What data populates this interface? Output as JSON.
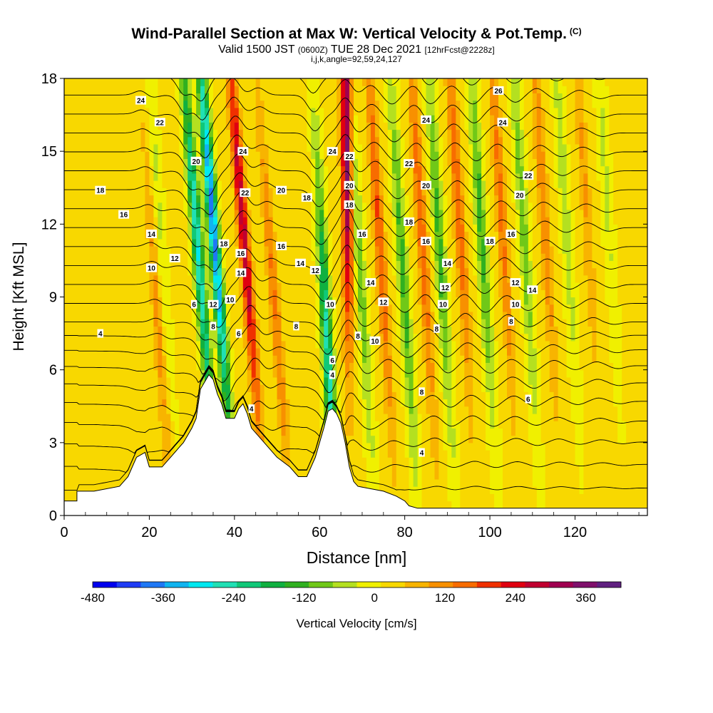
{
  "header": {
    "title": "Wind-Parallel Section at Max W: Vertical Velocity & Pot.Temp.",
    "copyright": "(C)",
    "valid_prefix": "Valid 1500 JST",
    "valid_utc": "(0600Z)",
    "valid_date": "TUE 28 Dec 2021",
    "forecast": "[12hrFcst@2228z]",
    "indices": "i,j,k,angle=92,59,24,127"
  },
  "chart_data": {
    "type": "heatmap",
    "xlabel": "Distance [nm]",
    "ylabel": "Height [Kft MSL]",
    "xlim": [
      0,
      137
    ],
    "ylim": [
      0,
      18
    ],
    "xticks": [
      0,
      20,
      40,
      60,
      80,
      100,
      120
    ],
    "yticks": [
      0,
      3,
      6,
      9,
      12,
      15,
      18
    ],
    "colorbar": {
      "label": "Vertical Velocity [cm/s]",
      "tick_values": [
        -480,
        -360,
        -240,
        -120,
        0,
        120,
        240,
        360
      ],
      "range": [
        -480,
        420
      ],
      "colors": [
        "#0000ee",
        "#1f3cf5",
        "#1f78f5",
        "#10b4f0",
        "#00e8f0",
        "#20e0b4",
        "#10c878",
        "#10b040",
        "#30b020",
        "#70c818",
        "#b4e020",
        "#f0f000",
        "#f8d800",
        "#f8b400",
        "#f89000",
        "#f86c00",
        "#f03000",
        "#e00010",
        "#c00030",
        "#a00050",
        "#80106c",
        "#602080"
      ]
    },
    "terrain_profile": {
      "x": [
        0,
        3,
        3,
        7,
        13,
        15,
        16,
        17,
        19,
        20,
        23,
        24,
        25,
        26,
        27,
        28,
        29,
        30,
        31,
        32,
        34,
        35,
        36,
        37,
        38,
        40,
        41,
        42,
        43,
        44,
        47,
        50,
        53,
        55,
        57,
        58,
        59,
        60,
        61,
        62,
        63,
        64,
        65,
        66,
        67,
        68,
        69,
        72,
        75,
        78,
        80,
        81,
        83,
        85,
        137
      ],
      "height_kft": [
        0.6,
        0.6,
        1.0,
        1.0,
        1.2,
        1.6,
        2.0,
        2.4,
        2.6,
        2.0,
        2.0,
        2.2,
        2.4,
        2.6,
        2.8,
        3.0,
        3.3,
        3.6,
        4.0,
        5.2,
        5.8,
        5.6,
        5.0,
        4.6,
        4.0,
        4.0,
        4.4,
        4.6,
        4.2,
        3.6,
        3.0,
        2.4,
        2.0,
        1.6,
        1.6,
        2.0,
        2.4,
        3.0,
        3.6,
        4.3,
        4.4,
        4.2,
        3.8,
        3.0,
        2.0,
        1.4,
        1.2,
        1.1,
        1.0,
        0.8,
        0.6,
        0.4,
        0.3,
        0.3,
        0.3
      ]
    },
    "vertical_velocity_bands": [
      {
        "x_base": 35,
        "amp_cm_s": -300,
        "peak_kft": 11,
        "slope": -0.45
      },
      {
        "x_base": 39,
        "amp_cm_s": -400,
        "peak_kft": 12,
        "slope": -0.45
      },
      {
        "x_base": 46,
        "amp_cm_s": 280,
        "peak_kft": 12,
        "slope": -0.45
      },
      {
        "x_base": 52,
        "amp_cm_s": 120,
        "peak_kft": 9,
        "slope": -0.45
      },
      {
        "x_base": 63,
        "amp_cm_s": -280,
        "peak_kft": 6,
        "slope": -0.3
      },
      {
        "x_base": 67,
        "amp_cm_s": 360,
        "peak_kft": 16,
        "slope": -0.05
      },
      {
        "x_base": 72,
        "amp_cm_s": -120,
        "peak_kft": 10,
        "slope": -0.35
      },
      {
        "x_base": 77,
        "amp_cm_s": 160,
        "peak_kft": 12,
        "slope": -0.35
      },
      {
        "x_base": 82,
        "amp_cm_s": -150,
        "peak_kft": 10,
        "slope": -0.35
      },
      {
        "x_base": 87,
        "amp_cm_s": 150,
        "peak_kft": 12,
        "slope": -0.35
      },
      {
        "x_base": 91,
        "amp_cm_s": -150,
        "peak_kft": 11,
        "slope": -0.35
      },
      {
        "x_base": 96,
        "amp_cm_s": 150,
        "peak_kft": 13,
        "slope": -0.35
      },
      {
        "x_base": 101,
        "amp_cm_s": -150,
        "peak_kft": 12,
        "slope": -0.35
      },
      {
        "x_base": 106,
        "amp_cm_s": 130,
        "peak_kft": 13,
        "slope": -0.35
      },
      {
        "x_base": 111,
        "amp_cm_s": -120,
        "peak_kft": 12,
        "slope": -0.35
      },
      {
        "x_base": 116,
        "amp_cm_s": 110,
        "peak_kft": 13,
        "slope": -0.35
      },
      {
        "x_base": 121,
        "amp_cm_s": -80,
        "peak_kft": 13,
        "slope": -0.35
      },
      {
        "x_base": 126,
        "amp_cm_s": 80,
        "peak_kft": 14,
        "slope": -0.35
      },
      {
        "x_base": 131,
        "amp_cm_s": -60,
        "peak_kft": 14,
        "slope": -0.35
      },
      {
        "x_base": 24,
        "amp_cm_s": 90,
        "peak_kft": 8,
        "slope": -0.4
      },
      {
        "x_base": 26,
        "amp_cm_s": -60,
        "peak_kft": 13,
        "slope": -0.4
      }
    ],
    "theta_contours": {
      "levels": [
        4,
        5,
        6,
        7,
        8,
        9,
        10,
        11,
        12,
        13,
        14,
        15,
        16,
        17,
        18,
        19,
        20,
        21,
        22,
        23,
        24,
        25,
        26
      ],
      "labels": [
        {
          "text": "24",
          "x": 18,
          "y": 17.1
        },
        {
          "text": "22",
          "x": 22.5,
          "y": 16.2
        },
        {
          "text": "20",
          "x": 31,
          "y": 14.6
        },
        {
          "text": "18",
          "x": 8.5,
          "y": 13.4
        },
        {
          "text": "16",
          "x": 14,
          "y": 12.4
        },
        {
          "text": "14",
          "x": 20.5,
          "y": 11.6
        },
        {
          "text": "12",
          "x": 26,
          "y": 10.6
        },
        {
          "text": "10",
          "x": 20.5,
          "y": 10.2
        },
        {
          "text": "6",
          "x": 30.5,
          "y": 8.7
        },
        {
          "text": "4",
          "x": 8.5,
          "y": 7.5
        },
        {
          "text": "24",
          "x": 42,
          "y": 15.0
        },
        {
          "text": "22",
          "x": 42.5,
          "y": 13.3
        },
        {
          "text": "18",
          "x": 37.5,
          "y": 11.2
        },
        {
          "text": "16",
          "x": 41.5,
          "y": 10.8
        },
        {
          "text": "14",
          "x": 41.5,
          "y": 10.0
        },
        {
          "text": "12",
          "x": 35,
          "y": 8.7
        },
        {
          "text": "10",
          "x": 39,
          "y": 8.9
        },
        {
          "text": "8",
          "x": 35,
          "y": 7.8
        },
        {
          "text": "6",
          "x": 41,
          "y": 7.5
        },
        {
          "text": "4",
          "x": 44,
          "y": 4.4
        },
        {
          "text": "20",
          "x": 51,
          "y": 13.4
        },
        {
          "text": "18",
          "x": 57,
          "y": 13.1
        },
        {
          "text": "16",
          "x": 51,
          "y": 11.1
        },
        {
          "text": "14",
          "x": 55.5,
          "y": 10.4
        },
        {
          "text": "12",
          "x": 59,
          "y": 10.1
        },
        {
          "text": "10",
          "x": 62.5,
          "y": 8.7
        },
        {
          "text": "8",
          "x": 54.5,
          "y": 7.8
        },
        {
          "text": "6",
          "x": 63,
          "y": 6.4
        },
        {
          "text": "4",
          "x": 63,
          "y": 5.8
        },
        {
          "text": "24",
          "x": 63,
          "y": 15.0
        },
        {
          "text": "22",
          "x": 67,
          "y": 14.8
        },
        {
          "text": "20",
          "x": 67,
          "y": 13.6
        },
        {
          "text": "18",
          "x": 67,
          "y": 12.8
        },
        {
          "text": "16",
          "x": 70,
          "y": 11.6
        },
        {
          "text": "14",
          "x": 72,
          "y": 9.6
        },
        {
          "text": "12",
          "x": 75,
          "y": 8.8
        },
        {
          "text": "10",
          "x": 73,
          "y": 7.2
        },
        {
          "text": "8",
          "x": 69,
          "y": 7.4
        },
        {
          "text": "24",
          "x": 85,
          "y": 16.3
        },
        {
          "text": "22",
          "x": 81,
          "y": 14.5
        },
        {
          "text": "20",
          "x": 85,
          "y": 13.6
        },
        {
          "text": "18",
          "x": 81,
          "y": 12.1
        },
        {
          "text": "16",
          "x": 85,
          "y": 11.3
        },
        {
          "text": "14",
          "x": 90,
          "y": 10.4
        },
        {
          "text": "12",
          "x": 89.5,
          "y": 9.4
        },
        {
          "text": "10",
          "x": 89,
          "y": 8.7
        },
        {
          "text": "8",
          "x": 87.5,
          "y": 7.7
        },
        {
          "text": "8",
          "x": 84,
          "y": 5.1
        },
        {
          "text": "4",
          "x": 84,
          "y": 2.6
        },
        {
          "text": "26",
          "x": 102,
          "y": 17.5
        },
        {
          "text": "24",
          "x": 103,
          "y": 16.2
        },
        {
          "text": "22",
          "x": 109,
          "y": 14.0
        },
        {
          "text": "20",
          "x": 107,
          "y": 13.2
        },
        {
          "text": "18",
          "x": 100,
          "y": 11.3
        },
        {
          "text": "16",
          "x": 105,
          "y": 11.6
        },
        {
          "text": "12",
          "x": 106,
          "y": 9.6
        },
        {
          "text": "10",
          "x": 106,
          "y": 8.7
        },
        {
          "text": "14",
          "x": 110,
          "y": 9.3
        },
        {
          "text": "8",
          "x": 105,
          "y": 8.0
        },
        {
          "text": "6",
          "x": 109,
          "y": 4.8
        }
      ]
    }
  }
}
